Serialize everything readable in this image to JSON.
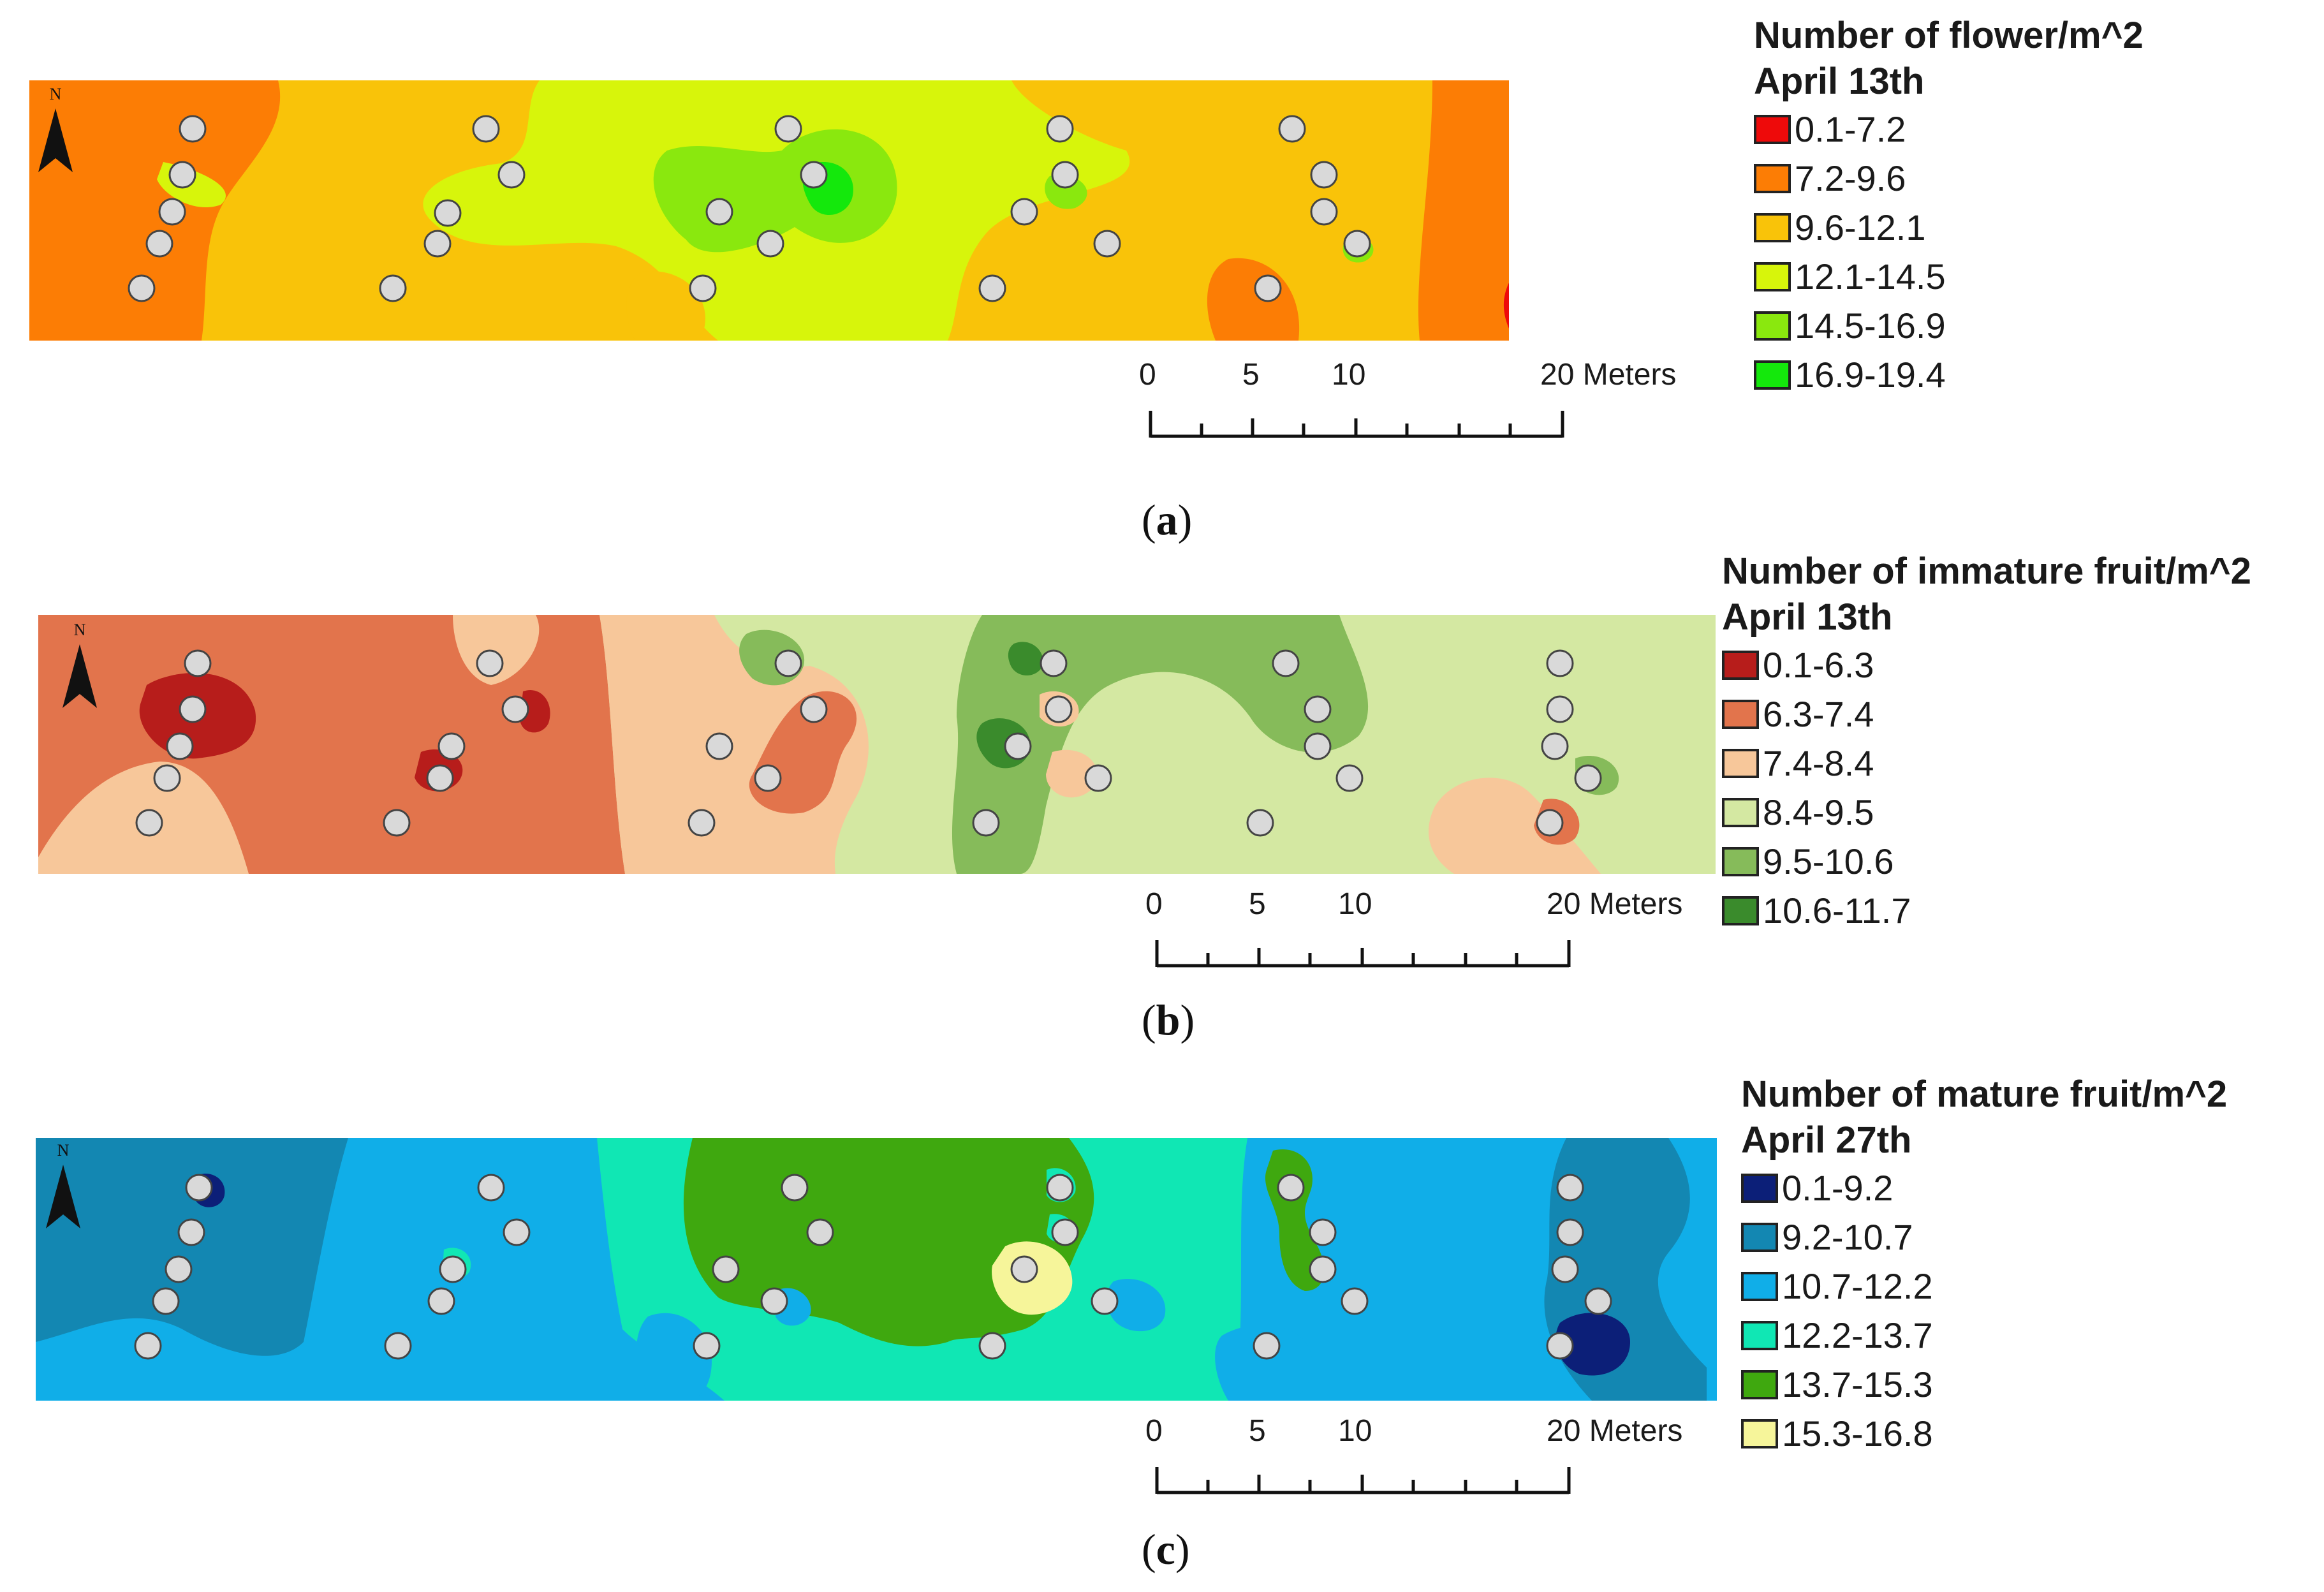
{
  "north_label": "N",
  "panels": [
    {
      "caption_letter": "a",
      "legend_title_line1": "Number of flower/m^2",
      "legend_title_line2": "April 13th",
      "classes": [
        {
          "label": "0.1-7.2",
          "color": "#ee0a0a"
        },
        {
          "label": "7.2-9.6",
          "color": "#fc7d05"
        },
        {
          "label": "9.6-12.1",
          "color": "#f9c309"
        },
        {
          "label": "12.1-14.5",
          "color": "#d7f50b"
        },
        {
          "label": "14.5-16.9",
          "color": "#8ae80e"
        },
        {
          "label": "16.9-19.4",
          "color": "#14e80c"
        }
      ],
      "scale_labels": [
        "0",
        "5",
        "10",
        "20 Meters"
      ]
    },
    {
      "caption_letter": "b",
      "legend_title_line1": "Number of immature fruit/m^2",
      "legend_title_line2": "April 13th",
      "classes": [
        {
          "label": "0.1-6.3",
          "color": "#b71d1b"
        },
        {
          "label": "6.3-7.4",
          "color": "#e2744c"
        },
        {
          "label": "7.4-8.4",
          "color": "#f7c79a"
        },
        {
          "label": "8.4-9.5",
          "color": "#d4e8a2"
        },
        {
          "label": "9.5-10.6",
          "color": "#86bb5a"
        },
        {
          "label": "10.6-11.7",
          "color": "#3a8b2c"
        }
      ],
      "scale_labels": [
        "0",
        "5",
        "10",
        "20 Meters"
      ]
    },
    {
      "caption_letter": "c",
      "legend_title_line1": "Number of mature fruit/m^2",
      "legend_title_line2": "April 27th",
      "classes": [
        {
          "label": "0.1-9.2",
          "color": "#0c1f78"
        },
        {
          "label": "9.2-10.7",
          "color": "#1387b2"
        },
        {
          "label": "10.7-12.2",
          "color": "#10aee8"
        },
        {
          "label": "12.2-13.7",
          "color": "#10e7b4"
        },
        {
          "label": "13.7-15.3",
          "color": "#3fa80f"
        },
        {
          "label": "15.3-16.8",
          "color": "#f6f59a"
        }
      ],
      "scale_labels": [
        "0",
        "5",
        "10",
        "20 Meters"
      ]
    }
  ]
}
